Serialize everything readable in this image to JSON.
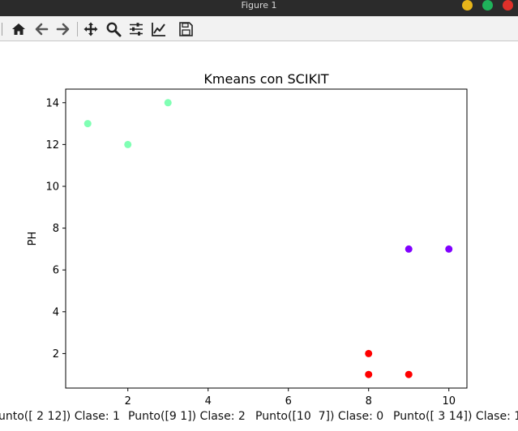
{
  "window": {
    "title": "Figure 1",
    "buttons": [
      {
        "name": "minimize",
        "color": "#e8b51a"
      },
      {
        "name": "maximize",
        "color": "#1fb25a"
      },
      {
        "name": "close",
        "color": "#e0302a"
      }
    ]
  },
  "toolbar": {
    "items": [
      "home-icon",
      "back-arrow-icon",
      "forward-arrow-icon",
      "pan-icon",
      "zoom-icon",
      "configure-subplots-icon",
      "edit-axis-icon",
      "save-icon"
    ]
  },
  "chart_data": {
    "type": "scatter",
    "title": "Kmeans con SCIKIT",
    "xlabel": "",
    "ylabel": "PH",
    "xlim": [
      0.45,
      10.45
    ],
    "ylim": [
      0.35,
      14.65
    ],
    "xticks": [
      2,
      4,
      6,
      8,
      10
    ],
    "yticks": [
      2,
      4,
      6,
      8,
      10,
      12,
      14
    ],
    "grid": false,
    "legend": "none",
    "points": [
      {
        "x": 1,
        "y": 13,
        "color": "#80ffb4"
      },
      {
        "x": 2,
        "y": 12,
        "color": "#80ffb4"
      },
      {
        "x": 3,
        "y": 14,
        "color": "#80ffb4"
      },
      {
        "x": 9,
        "y": 7,
        "color": "#8000ff"
      },
      {
        "x": 10,
        "y": 7,
        "color": "#8000ff"
      },
      {
        "x": 8,
        "y": 2,
        "color": "#ff0000"
      },
      {
        "x": 8,
        "y": 1,
        "color": "#ff0000"
      },
      {
        "x": 9,
        "y": 1,
        "color": "#ff0000"
      }
    ]
  },
  "status": {
    "items": [
      "unto([ 2 12]) Clase: 1",
      "Punto([9 1]) Clase: 2",
      "Punto([10  7]) Clase: 0",
      "Punto([ 3 14]) Clase: 1"
    ]
  }
}
